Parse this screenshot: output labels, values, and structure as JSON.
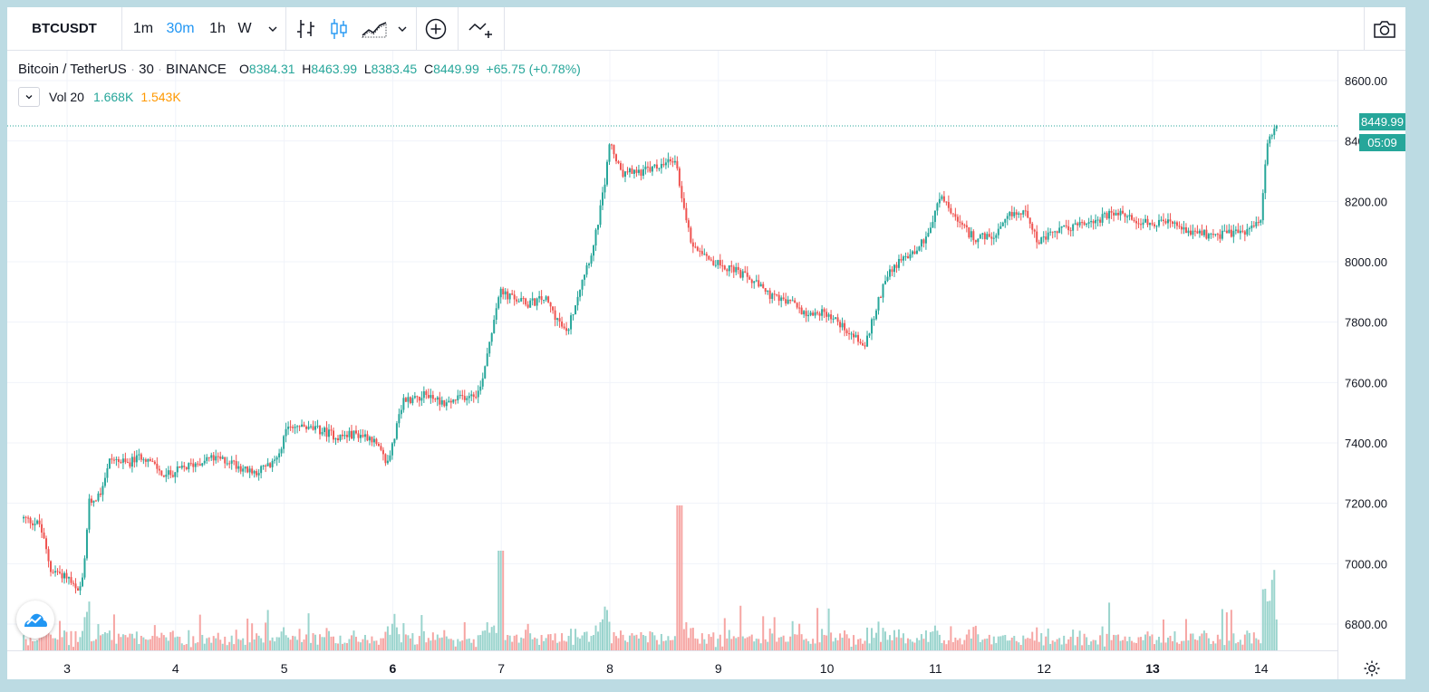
{
  "toolbar": {
    "symbol": "BTCUSDT",
    "intervals": [
      "1m",
      "30m",
      "1h",
      "W"
    ],
    "active_interval": "30m"
  },
  "legend": {
    "name": "Bitcoin / TetherUS",
    "interval": "30",
    "exchange": "BINANCE",
    "open_label": "O",
    "open": "8384.31",
    "high_label": "H",
    "high": "8463.99",
    "low_label": "L",
    "low": "8383.45",
    "close_label": "C",
    "close": "8449.99",
    "change": "+65.75 (+0.78%)",
    "vol_label": "Vol 20",
    "vol_value1": "1.668K",
    "vol_value2": "1.543K"
  },
  "badges": {
    "last_price": "8449.99",
    "countdown": "05:09"
  },
  "colors": {
    "up": "#26a69a",
    "down": "#ef5350",
    "vol_up": "#9ad4cd",
    "vol_down": "#f6a5a3",
    "accent": "#2196f3"
  },
  "icons": [
    "bar-chart-icon",
    "candles-icon",
    "area-chart-icon",
    "chevron-down-icon",
    "plus-circle-icon",
    "compare-icon",
    "camera-icon",
    "gear-icon",
    "tradingview-logo-icon"
  ],
  "chart_data": {
    "type": "candlestick",
    "x_tick_labels": [
      "3",
      "4",
      "5",
      "6",
      "7",
      "8",
      "9",
      "10",
      "11",
      "12",
      "13",
      "14"
    ],
    "y_tick_labels": [
      "6800.00",
      "7000.00",
      "7200.00",
      "7400.00",
      "7600.00",
      "7800.00",
      "8000.00",
      "8200.00",
      "8600.00"
    ],
    "ylim": [
      6710,
      8700
    ],
    "last_price": 8449.99,
    "grid": true,
    "close_path": [
      [
        2.6,
        7150
      ],
      [
        2.75,
        7130
      ],
      [
        2.85,
        6980
      ],
      [
        3.0,
        6960
      ],
      [
        3.1,
        6900
      ],
      [
        3.15,
        6950
      ],
      [
        3.2,
        7200
      ],
      [
        3.3,
        7230
      ],
      [
        3.4,
        7350
      ],
      [
        3.55,
        7330
      ],
      [
        3.7,
        7360
      ],
      [
        3.9,
        7290
      ],
      [
        4.1,
        7320
      ],
      [
        4.3,
        7350
      ],
      [
        4.5,
        7340
      ],
      [
        4.7,
        7300
      ],
      [
        4.9,
        7330
      ],
      [
        5.05,
        7460
      ],
      [
        5.2,
        7450
      ],
      [
        5.35,
        7440
      ],
      [
        5.5,
        7420
      ],
      [
        5.65,
        7430
      ],
      [
        5.8,
        7420
      ],
      [
        5.95,
        7330
      ],
      [
        6.1,
        7540
      ],
      [
        6.3,
        7560
      ],
      [
        6.5,
        7530
      ],
      [
        6.7,
        7560
      ],
      [
        6.8,
        7570
      ],
      [
        6.98,
        7900
      ],
      [
        7.1,
        7880
      ],
      [
        7.25,
        7860
      ],
      [
        7.4,
        7880
      ],
      [
        7.6,
        7760
      ],
      [
        7.75,
        7950
      ],
      [
        7.85,
        8050
      ],
      [
        7.95,
        8250
      ],
      [
        8.0,
        8400
      ],
      [
        8.1,
        8290
      ],
      [
        8.3,
        8300
      ],
      [
        8.5,
        8320
      ],
      [
        8.6,
        8340
      ],
      [
        8.7,
        8150
      ],
      [
        8.75,
        8060
      ],
      [
        8.85,
        8040
      ],
      [
        8.95,
        8000
      ],
      [
        9.1,
        7980
      ],
      [
        9.3,
        7940
      ],
      [
        9.5,
        7880
      ],
      [
        9.7,
        7860
      ],
      [
        9.8,
        7830
      ],
      [
        10.0,
        7830
      ],
      [
        10.2,
        7770
      ],
      [
        10.35,
        7720
      ],
      [
        10.45,
        7840
      ],
      [
        10.55,
        7960
      ],
      [
        10.7,
        8010
      ],
      [
        10.85,
        8050
      ],
      [
        10.95,
        8110
      ],
      [
        11.05,
        8220
      ],
      [
        11.2,
        8130
      ],
      [
        11.35,
        8080
      ],
      [
        11.55,
        8080
      ],
      [
        11.7,
        8160
      ],
      [
        11.85,
        8160
      ],
      [
        11.95,
        8060
      ],
      [
        12.1,
        8100
      ],
      [
        12.3,
        8120
      ],
      [
        12.5,
        8140
      ],
      [
        12.65,
        8160
      ],
      [
        12.85,
        8140
      ],
      [
        13.0,
        8120
      ],
      [
        13.15,
        8130
      ],
      [
        13.3,
        8100
      ],
      [
        13.5,
        8090
      ],
      [
        13.65,
        8090
      ],
      [
        13.85,
        8100
      ],
      [
        14.0,
        8130
      ],
      [
        14.05,
        8380
      ],
      [
        14.1,
        8420
      ],
      [
        14.15,
        8449.99
      ]
    ],
    "volume_note": "volume histogram along the bottom, green/red by candle direction"
  }
}
